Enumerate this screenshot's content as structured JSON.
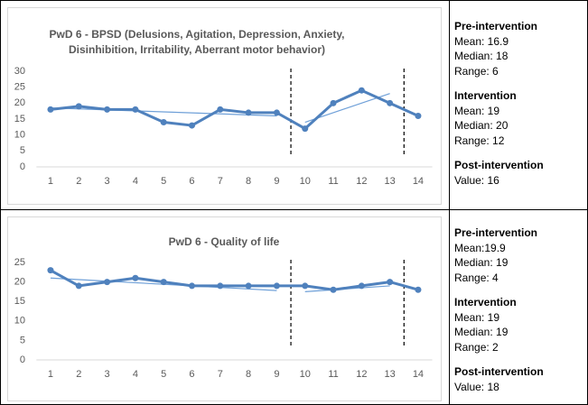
{
  "chart_data": [
    {
      "type": "line",
      "title": "PwD 6 - BPSD (Delusions, Agitation, Depression, Anxiety, Disinhibition, Irritability, Aberrant motor behavior)",
      "x": [
        1,
        2,
        3,
        4,
        5,
        6,
        7,
        8,
        9,
        10,
        11,
        12,
        13,
        14
      ],
      "xlim": [
        0.5,
        14.5
      ],
      "series": [
        {
          "color": "#4f81bd",
          "values": [
            18,
            19,
            18,
            18,
            14,
            13,
            18,
            17,
            17,
            12,
            20,
            24,
            20,
            16
          ]
        }
      ],
      "trend_lines": [
        {
          "color": "#6fa0d8",
          "x": [
            1,
            9
          ],
          "values": [
            18.5,
            16
          ]
        },
        {
          "color": "#6fa0d8",
          "x": [
            10,
            13
          ],
          "values": [
            14,
            23
          ]
        }
      ],
      "phase_lines": [
        9.5,
        13.5
      ],
      "ylim": [
        0,
        30
      ],
      "yticks": [
        0,
        5,
        10,
        15,
        20,
        25,
        30
      ],
      "grid": false
    },
    {
      "type": "line",
      "title": "PwD 6 - Quality of life",
      "x": [
        1,
        2,
        3,
        4,
        5,
        6,
        7,
        8,
        9,
        10,
        11,
        12,
        13,
        14
      ],
      "xlim": [
        0.5,
        14.5
      ],
      "series": [
        {
          "color": "#4f81bd",
          "values": [
            23,
            19,
            20,
            21,
            20,
            19,
            19,
            19,
            19,
            19,
            18,
            19,
            20,
            18
          ]
        }
      ],
      "trend_lines": [
        {
          "color": "#6fa0d8",
          "x": [
            1,
            9
          ],
          "values": [
            21,
            17.8
          ]
        },
        {
          "color": "#6fa0d8",
          "x": [
            10,
            13
          ],
          "values": [
            17.5,
            19
          ]
        }
      ],
      "phase_lines": [
        9.5,
        13.5
      ],
      "ylim": [
        0,
        25
      ],
      "yticks": [
        0,
        5,
        10,
        15,
        20,
        25
      ],
      "grid": false
    }
  ],
  "stats": [
    [
      {
        "heading": "Pre-intervention",
        "lines": [
          "Mean: 16.9",
          "Median: 18",
          "Range: 6"
        ]
      },
      {
        "heading": "Intervention",
        "lines": [
          "Mean: 19",
          "Median: 20",
          "Range: 12"
        ]
      },
      {
        "heading": "Post-intervention",
        "lines": [
          "Value: 16"
        ]
      }
    ],
    [
      {
        "heading": "Pre-intervention",
        "lines": [
          "Mean:19.9",
          "Median: 19",
          "Range: 4"
        ]
      },
      {
        "heading": "Intervention",
        "lines": [
          "Mean: 19",
          "Median: 19",
          "Range: 2"
        ]
      },
      {
        "heading": "Post-intervention",
        "lines": [
          "Value: 18"
        ]
      }
    ]
  ]
}
